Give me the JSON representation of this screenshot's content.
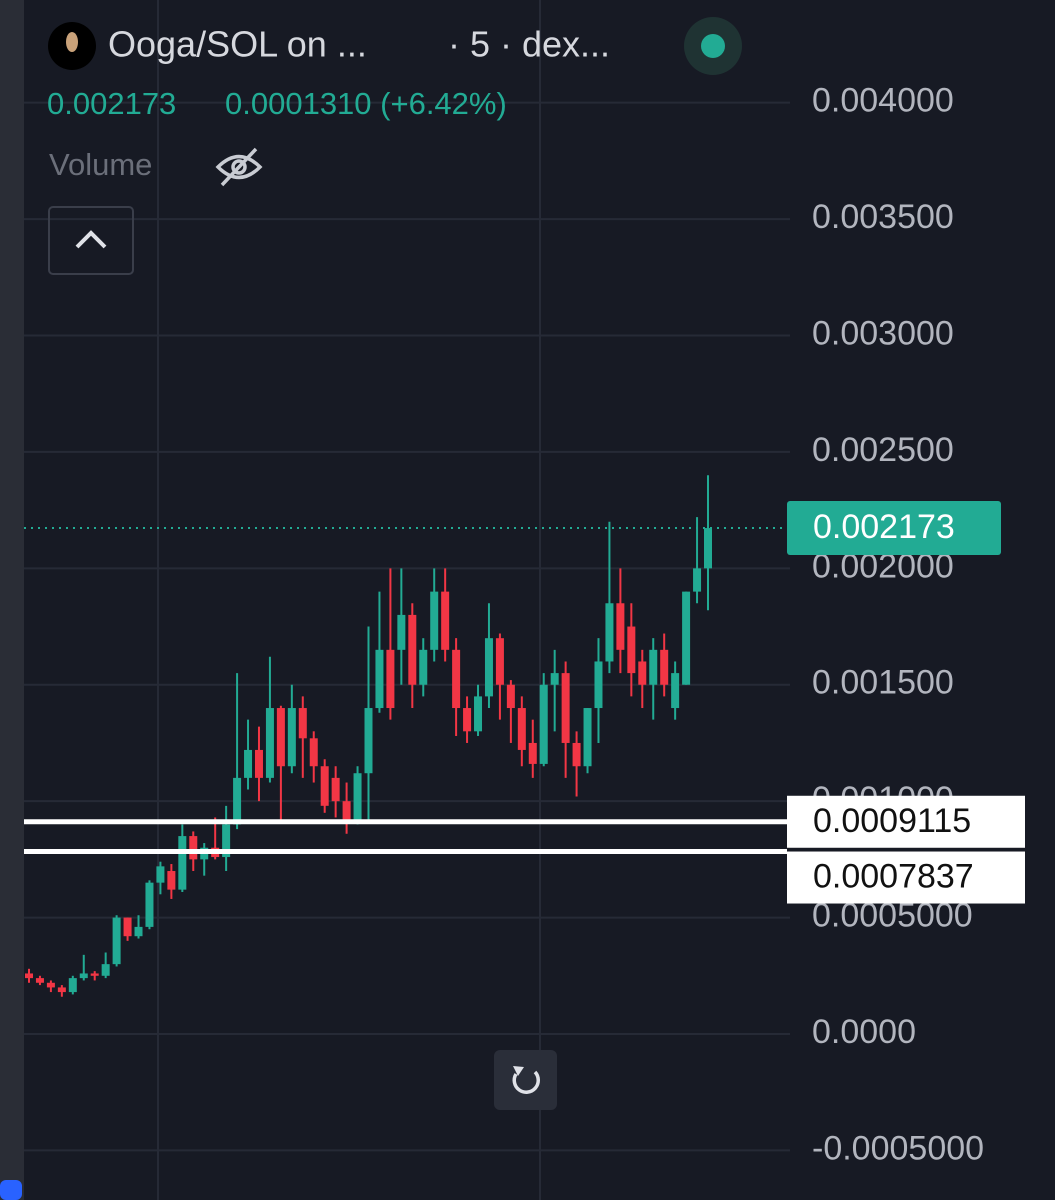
{
  "chart_data": {
    "type": "candlestick",
    "title": "Ooga/SOL on ...",
    "subtitle": "· 5 · dex...",
    "last_price": {
      "value": 0.002173,
      "label": "0.002173"
    },
    "change_label": "0.0001310 (+6.42%)",
    "volume_label": "Volume",
    "up_color": "#22ab94",
    "down_color": "#f23645",
    "ylim": [
      -0.000713,
      0.004441
    ],
    "yticks": [
      {
        "value": 0.004,
        "label": "0.004000"
      },
      {
        "value": 0.0035,
        "label": "0.003500"
      },
      {
        "value": 0.003,
        "label": "0.003000"
      },
      {
        "value": 0.0025,
        "label": "0.002500"
      },
      {
        "value": 0.002,
        "label": "0.002000"
      },
      {
        "value": 0.0015,
        "label": "0.001500"
      },
      {
        "value": 0.001,
        "label": "0.001000"
      },
      {
        "value": 0.0005,
        "label": "0.0005000"
      },
      {
        "value": 0,
        "label": "0.0000"
      },
      {
        "value": -0.0005,
        "label": "-0.0005000"
      }
    ],
    "levels": [
      {
        "value": 0.0009115,
        "label": "0.0009115"
      },
      {
        "value": 0.0007837,
        "label": "0.0007837"
      }
    ],
    "open": [
      0.00026,
      0.00024,
      0.00022,
      0.0002,
      0.00018,
      0.00024,
      0.00026,
      0.00025,
      0.0003,
      0.0005,
      0.00042,
      0.00046,
      0.00065,
      0.0007,
      0.00062,
      0.00085,
      0.00075,
      0.0008,
      0.00076,
      0.0009,
      0.0011,
      0.00122,
      0.0011,
      0.0014,
      0.00115,
      0.0014,
      0.00127,
      0.00115,
      0.0011,
      0.001,
      0.00092,
      0.00112,
      0.0014,
      0.00165,
      0.00165,
      0.0018,
      0.0015,
      0.00165,
      0.0019,
      0.00165,
      0.0014,
      0.0013,
      0.00145,
      0.0017,
      0.0015,
      0.0014,
      0.00125,
      0.00116,
      0.0015,
      0.00155,
      0.00125,
      0.00115,
      0.0014,
      0.0016,
      0.00185,
      0.00175,
      0.0016,
      0.0015,
      0.00165,
      0.0014,
      0.0015,
      0.0019,
      0.002
    ],
    "high": [
      0.00028,
      0.00025,
      0.00023,
      0.00021,
      0.00025,
      0.00034,
      0.00027,
      0.00035,
      0.00051,
      0.0005,
      0.00051,
      0.00066,
      0.00074,
      0.00073,
      0.0009,
      0.00087,
      0.00082,
      0.00093,
      0.00098,
      0.00155,
      0.00135,
      0.00132,
      0.00162,
      0.00141,
      0.0015,
      0.00145,
      0.0013,
      0.00118,
      0.00115,
      0.00108,
      0.00115,
      0.00175,
      0.0019,
      0.002,
      0.002,
      0.00185,
      0.0017,
      0.002,
      0.002,
      0.0017,
      0.00145,
      0.0015,
      0.00185,
      0.00172,
      0.00152,
      0.00145,
      0.00135,
      0.00155,
      0.00165,
      0.0016,
      0.0013,
      0.0014,
      0.0017,
      0.0022,
      0.002,
      0.00185,
      0.00165,
      0.0017,
      0.00172,
      0.0016,
      0.0019,
      0.00222,
      0.0024
    ],
    "low": [
      0.00022,
      0.00021,
      0.00018,
      0.00016,
      0.00017,
      0.00023,
      0.00023,
      0.00024,
      0.00029,
      0.0004,
      0.00041,
      0.00045,
      0.0006,
      0.00058,
      0.00061,
      0.0007,
      0.00068,
      0.00075,
      0.0007,
      0.00088,
      0.00105,
      0.001,
      0.00108,
      0.00092,
      0.00112,
      0.0011,
      0.00108,
      0.00095,
      0.00093,
      0.00086,
      0.0009,
      0.00092,
      0.00138,
      0.00135,
      0.0015,
      0.0014,
      0.00145,
      0.0016,
      0.0016,
      0.00128,
      0.00125,
      0.00128,
      0.0014,
      0.00135,
      0.00125,
      0.00115,
      0.0011,
      0.00115,
      0.0013,
      0.0011,
      0.00102,
      0.00112,
      0.00125,
      0.00155,
      0.00155,
      0.00145,
      0.0014,
      0.00135,
      0.00145,
      0.00135,
      0.0015,
      0.00185,
      0.00182
    ],
    "close": [
      0.00024,
      0.00022,
      0.0002,
      0.00018,
      0.00024,
      0.00026,
      0.00025,
      0.0003,
      0.0005,
      0.00042,
      0.00046,
      0.00065,
      0.00072,
      0.00062,
      0.00085,
      0.00075,
      0.0008,
      0.00076,
      0.0009,
      0.0011,
      0.00122,
      0.0011,
      0.0014,
      0.00115,
      0.0014,
      0.00127,
      0.00115,
      0.00098,
      0.001,
      0.00092,
      0.00112,
      0.0014,
      0.00165,
      0.0014,
      0.0018,
      0.0015,
      0.00165,
      0.0019,
      0.00165,
      0.0014,
      0.0013,
      0.00145,
      0.0017,
      0.0015,
      0.0014,
      0.00122,
      0.00116,
      0.0015,
      0.00155,
      0.00125,
      0.00115,
      0.0014,
      0.0016,
      0.00185,
      0.00165,
      0.00155,
      0.0015,
      0.00165,
      0.0015,
      0.00155,
      0.0019,
      0.002,
      0.002173
    ]
  }
}
